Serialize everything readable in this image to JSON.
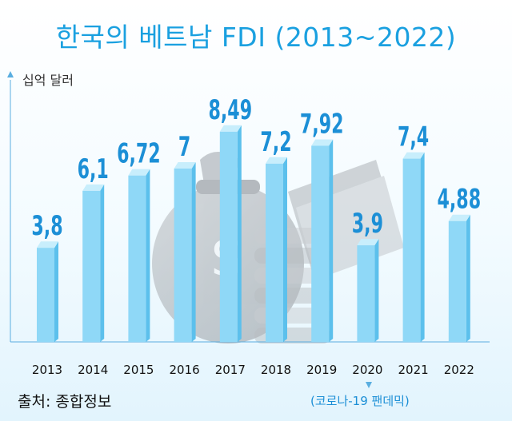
{
  "title": "한국의 베트남 FDI (2013~2022)",
  "unit_label": "십억 달러",
  "source": "출처: 종합정보",
  "note": "(코로나-19 팬데믹)",
  "colors": {
    "title": "#1aa0e0",
    "bar_front": "#8fd8f7",
    "bar_side": "#5cc0ec",
    "bar_top": "#c8eefc",
    "label": "#1c8fd6",
    "axis": "#5aaee0"
  },
  "chart_data": {
    "type": "bar",
    "title": "한국의 베트남 FDI (2013~2022)",
    "ylabel": "십억 달러",
    "xlabel": "",
    "categories": [
      "2013",
      "2014",
      "2015",
      "2016",
      "2017",
      "2018",
      "2019",
      "2020",
      "2021",
      "2022"
    ],
    "values": [
      3.8,
      6.1,
      6.72,
      7,
      8.49,
      7.2,
      7.92,
      3.9,
      7.4,
      4.88
    ],
    "value_labels": [
      "3,8",
      "6,1",
      "6,72",
      "7",
      "8,49",
      "7,2",
      "7,92",
      "3,9",
      "7,4",
      "4,88"
    ],
    "ylim": [
      0,
      9.0
    ],
    "grid": false,
    "legend": "none"
  }
}
